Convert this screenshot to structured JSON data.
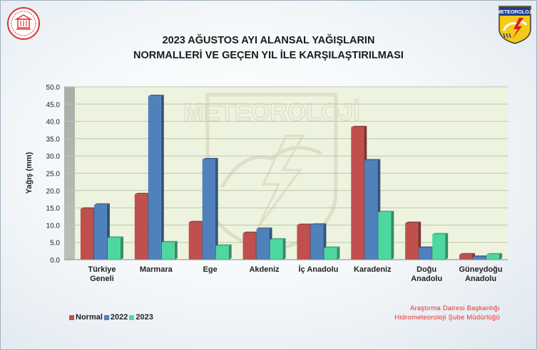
{
  "slide": {
    "title_line1": "2023 AĞUSTOS AYI ALANSAL YAĞIŞLARIN",
    "title_line2": "NORMALLERİ VE GEÇEN YIL İLE KARŞILAŞTIRILMASI",
    "footer_line1": "Araştırma Dairesi Başkanlığı",
    "footer_line2": "Hidrometeoroloji Şube Müdürlüğü",
    "logo_right_text": "METEOROLOJİ",
    "watermark_text": "METEOROLOJİ"
  },
  "colors": {
    "Normal": "#c0504d",
    "2022": "#4f81bd",
    "2023": "#4ed8a0",
    "plot_bg": "#eef3df",
    "grid": "#bcc8a8"
  },
  "chart_data": {
    "type": "bar",
    "title": "2023 AĞUSTOS AYI ALANSAL YAĞIŞLARIN NORMALLERİ VE GEÇEN YIL İLE KARŞILAŞTIRILMASI",
    "xlabel": "",
    "ylabel": "Yağış (mm)",
    "ylim": [
      0,
      50
    ],
    "yticks": [
      "0.0",
      "5.0",
      "10.0",
      "15.0",
      "20.0",
      "25.0",
      "30.0",
      "35.0",
      "40.0",
      "45.0",
      "50.0"
    ],
    "grid": true,
    "legend_position": "bottom-left",
    "categories": [
      [
        "Türkiye",
        "Geneli"
      ],
      [
        "Marmara"
      ],
      [
        "Ege"
      ],
      [
        "Akdeniz"
      ],
      [
        "İç Anadolu"
      ],
      [
        "Karadeniz"
      ],
      [
        "Doğu",
        "Anadolu"
      ],
      [
        "Güneydoğu",
        "Anadolu"
      ]
    ],
    "series": [
      {
        "name": "Normal",
        "values": [
          14.7,
          18.9,
          10.8,
          7.7,
          10.0,
          38.3,
          10.6,
          1.5
        ]
      },
      {
        "name": "2022",
        "values": [
          15.9,
          47.3,
          29.0,
          8.9,
          10.1,
          28.7,
          3.4,
          0.8
        ]
      },
      {
        "name": "2023",
        "values": [
          6.3,
          5.0,
          4.0,
          5.8,
          3.4,
          13.7,
          7.3,
          1.5
        ]
      }
    ]
  }
}
